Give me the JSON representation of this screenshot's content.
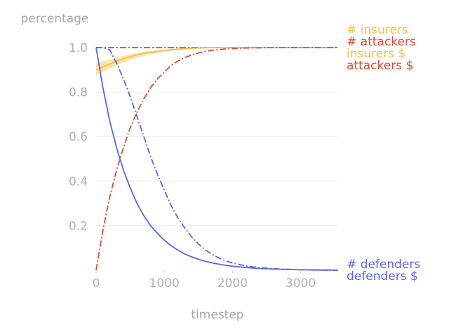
{
  "chart_data": {
    "type": "line",
    "ylabel": "percentage",
    "xlabel": "timestep",
    "xlim": [
      0,
      3550
    ],
    "ylim": [
      0,
      1.0
    ],
    "x_ticks": [
      "0",
      "1000",
      "2000",
      "3000"
    ],
    "y_ticks": [
      "0.2",
      "0.4",
      "0.6",
      "0.8",
      "1.0"
    ],
    "grid": "horizontal",
    "legend": "right, labels beside line ends",
    "x": [
      0,
      100,
      200,
      300,
      400,
      500,
      600,
      700,
      800,
      900,
      1000,
      1100,
      1200,
      1300,
      1400,
      1500,
      1600,
      1700,
      1800,
      1900,
      2000,
      2200,
      2400,
      2600,
      2800,
      3000,
      3200,
      3400,
      3550
    ],
    "series": [
      {
        "name": "# insurers",
        "color": "#f5c04a",
        "style": "dashdot",
        "values": [
          1,
          1,
          1,
          1,
          1,
          1,
          1,
          1,
          1,
          1,
          1,
          1,
          1,
          1,
          1,
          1,
          1,
          1,
          1,
          1,
          1,
          1,
          1,
          1,
          1,
          1,
          1,
          1,
          1
        ]
      },
      {
        "name": "# attackers",
        "color": "#e24a33",
        "style": "dashdot",
        "values": [
          1,
          1,
          1,
          1,
          1,
          1,
          1,
          1,
          1,
          1,
          1,
          1,
          1,
          1,
          1,
          1,
          1,
          1,
          1,
          1,
          1,
          1,
          1,
          1,
          1,
          1,
          1,
          1,
          1
        ]
      },
      {
        "name": "insurers $",
        "color": "#f5c04a",
        "style": "solid",
        "values": [
          0.9,
          0.913,
          0.926,
          0.939,
          0.95,
          0.959,
          0.967,
          0.974,
          0.979,
          0.983,
          0.987,
          0.99,
          0.993,
          0.995,
          0.997,
          0.998,
          0.999,
          1,
          1,
          1,
          1,
          1,
          1,
          1,
          1,
          1,
          1,
          1,
          1
        ],
        "band_low": [
          0.875,
          0.89,
          0.905,
          0.92,
          0.933,
          0.945,
          0.955,
          0.963,
          0.97,
          0.976,
          0.981,
          0.986,
          0.99,
          0.993,
          0.995,
          0.997,
          0.998,
          0.999,
          1,
          1,
          1,
          1,
          1,
          1,
          1,
          1,
          1,
          1,
          1
        ],
        "band_high": [
          0.93,
          0.938,
          0.946,
          0.955,
          0.963,
          0.97,
          0.976,
          0.981,
          0.985,
          0.988,
          0.991,
          0.994,
          0.996,
          0.997,
          0.998,
          0.999,
          1,
          1,
          1,
          1,
          1,
          1,
          1,
          1,
          1,
          1,
          1,
          1,
          1
        ]
      },
      {
        "name": "attackers $",
        "color": "#e24a33",
        "style": "dashdot",
        "values": [
          0,
          0.18,
          0.33,
          0.45,
          0.55,
          0.64,
          0.71,
          0.77,
          0.82,
          0.86,
          0.89,
          0.92,
          0.94,
          0.955,
          0.967,
          0.976,
          0.983,
          0.988,
          0.991,
          0.994,
          0.996,
          0.998,
          0.999,
          1,
          1,
          1,
          1,
          1,
          1
        ]
      },
      {
        "name": "# defenders",
        "color": "#5a67e0",
        "style": "solid",
        "values": [
          1,
          0.82,
          0.67,
          0.55,
          0.45,
          0.37,
          0.3,
          0.245,
          0.2,
          0.165,
          0.135,
          0.11,
          0.09,
          0.073,
          0.06,
          0.049,
          0.04,
          0.033,
          0.027,
          0.022,
          0.018,
          0.012,
          0.008,
          0.005,
          0.003,
          0.002,
          0.001,
          0.001,
          0
        ]
      },
      {
        "name": "defenders $",
        "color": "#5a67e0",
        "style": "dashdot",
        "values": [
          1,
          1,
          0.99,
          0.93,
          0.86,
          0.78,
          0.69,
          0.6,
          0.51,
          0.43,
          0.36,
          0.29,
          0.235,
          0.19,
          0.15,
          0.118,
          0.092,
          0.071,
          0.055,
          0.042,
          0.032,
          0.019,
          0.011,
          0.007,
          0.004,
          0.002,
          0.001,
          0,
          0
        ]
      }
    ],
    "legend_order": [
      "# insurers",
      "# attackers",
      "insurers $",
      "attackers $",
      "# defenders",
      "defenders $"
    ]
  }
}
